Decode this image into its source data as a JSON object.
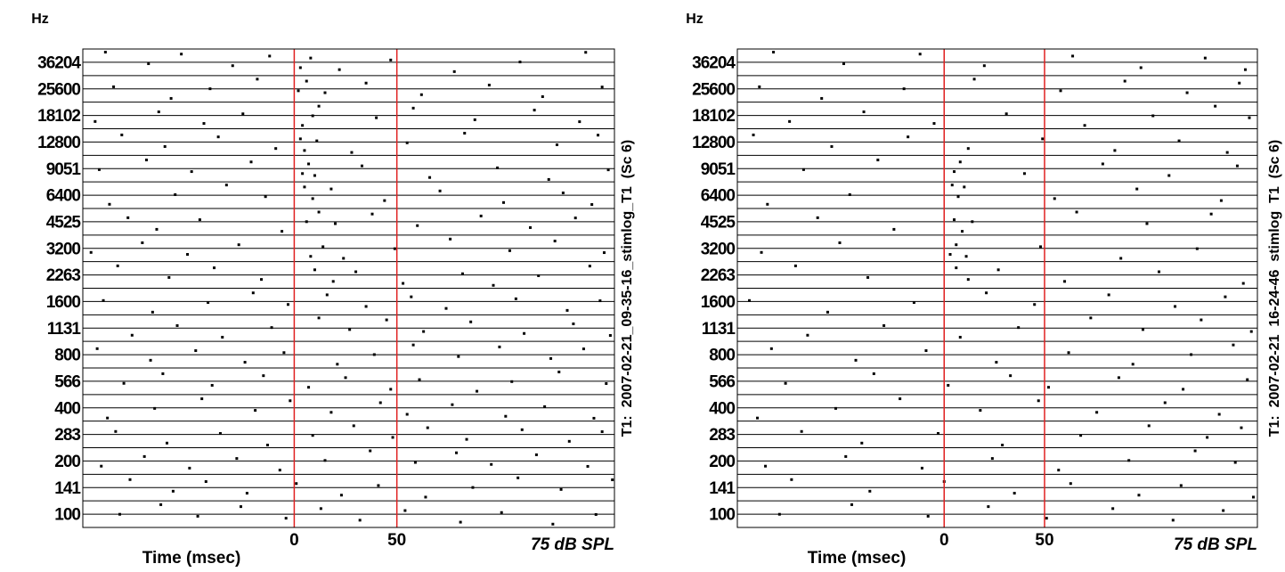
{
  "chart_data": [
    {
      "type": "raster",
      "y_unit": "Hz",
      "x_label": "Time (msec)",
      "annotation": "75 dB SPL",
      "side_label": "T1:  2007-02-21_09-35-16_stimlog_T1  (Sc 6)",
      "categories": [
        "36204",
        "25600",
        "18102",
        "12800",
        "9051",
        "6400",
        "4525",
        "3200",
        "2263",
        "1600",
        "1131",
        "800",
        "566",
        "400",
        "283",
        "200",
        "141",
        "100"
      ],
      "xlim": [
        -103,
        156
      ],
      "xticks": [
        0,
        50
      ],
      "marker_color": "#e02020",
      "spike_color": "#000000",
      "spikes": [
        [
          -92,
          -71,
          -55,
          -30,
          -12,
          3,
          8,
          22,
          47,
          78,
          110,
          142
        ],
        [
          -88,
          -60,
          -41,
          -18,
          2,
          6,
          15,
          35,
          62,
          95,
          121,
          150
        ],
        [
          -97,
          -66,
          -44,
          -25,
          4,
          9,
          12,
          40,
          58,
          88,
          117,
          139
        ],
        [
          -84,
          -63,
          -37,
          -9,
          3,
          5,
          11,
          28,
          55,
          83,
          128,
          148
        ],
        [
          -95,
          -72,
          -50,
          -21,
          4,
          7,
          10,
          33,
          66,
          99,
          124,
          153
        ],
        [
          -90,
          -58,
          -33,
          -14,
          5,
          9,
          18,
          44,
          71,
          102,
          131,
          145
        ],
        [
          -81,
          -67,
          -46,
          -6,
          6,
          12,
          20,
          38,
          60,
          91,
          115,
          137
        ],
        [
          -99,
          -74,
          -52,
          -27,
          8,
          14,
          24,
          49,
          76,
          105,
          127,
          151
        ],
        [
          -86,
          -61,
          -39,
          -16,
          10,
          19,
          30,
          53,
          82,
          97,
          119,
          144
        ],
        [
          -93,
          -69,
          -42,
          -20,
          -3,
          16,
          35,
          57,
          74,
          108,
          133,
          149
        ],
        [
          -79,
          -57,
          -35,
          -11,
          12,
          27,
          45,
          63,
          86,
          112,
          136,
          154
        ],
        [
          -96,
          -70,
          -48,
          -24,
          -5,
          21,
          39,
          58,
          80,
          100,
          125,
          141
        ],
        [
          -83,
          -64,
          -40,
          -15,
          7,
          25,
          47,
          61,
          89,
          106,
          129,
          152
        ],
        [
          -91,
          -68,
          -45,
          -19,
          -2,
          18,
          42,
          55,
          77,
          103,
          122,
          146
        ],
        [
          -87,
          -62,
          -36,
          -13,
          9,
          29,
          48,
          65,
          84,
          111,
          134,
          150
        ],
        [
          -94,
          -73,
          -51,
          -28,
          -7,
          15,
          37,
          59,
          79,
          96,
          118,
          143
        ],
        [
          -80,
          -59,
          -43,
          -23,
          1,
          23,
          41,
          64,
          87,
          109,
          130,
          155
        ],
        [
          -85,
          -65,
          -47,
          -26,
          -4,
          13,
          32,
          54,
          81,
          101,
          126,
          147
        ]
      ]
    },
    {
      "type": "raster",
      "y_unit": "Hz",
      "x_label": "Time (msec)",
      "annotation": "75 dB SPL",
      "side_label": "T1:  2007-02-21  16-24-46  stimlog  T1  (Sc 6)",
      "categories": [
        "36204",
        "25600",
        "18102",
        "12800",
        "9051",
        "6400",
        "4525",
        "3200",
        "2263",
        "1600",
        "1131",
        "800",
        "566",
        "400",
        "283",
        "200",
        "141",
        "100"
      ],
      "xlim": [
        -103,
        156
      ],
      "xticks": [
        0,
        50
      ],
      "marker_color": "#e02020",
      "spike_color": "#000000",
      "spikes": [
        [
          -85,
          -50,
          -12,
          20,
          64,
          98,
          130,
          150
        ],
        [
          -92,
          -61,
          -20,
          15,
          58,
          90,
          121,
          147
        ],
        [
          -77,
          -40,
          -5,
          31,
          70,
          104,
          135,
          152
        ],
        [
          -95,
          -56,
          -18,
          12,
          49,
          85,
          117,
          141
        ],
        [
          -70,
          -33,
          5,
          8,
          40,
          79,
          112,
          146
        ],
        [
          -88,
          -47,
          4,
          7,
          10,
          55,
          96,
          138
        ],
        [
          -63,
          -25,
          5,
          9,
          14,
          66,
          101,
          133
        ],
        [
          -91,
          -52,
          3,
          6,
          11,
          48,
          88,
          126
        ],
        [
          -74,
          -38,
          6,
          12,
          27,
          60,
          107,
          149
        ],
        [
          -97,
          -58,
          -15,
          21,
          45,
          82,
          115,
          140
        ],
        [
          -68,
          -30,
          8,
          37,
          73,
          99,
          128,
          153
        ],
        [
          -86,
          -44,
          -9,
          26,
          62,
          94,
          123,
          144
        ],
        [
          -79,
          -35,
          2,
          33,
          52,
          87,
          119,
          151
        ],
        [
          -93,
          -54,
          -22,
          18,
          47,
          76,
          110,
          137
        ],
        [
          -71,
          -41,
          -3,
          29,
          68,
          102,
          131,
          148
        ],
        [
          -89,
          -49,
          -11,
          24,
          57,
          92,
          125,
          145
        ],
        [
          -76,
          -37,
          0,
          35,
          63,
          97,
          118,
          154
        ],
        [
          -82,
          -46,
          -8,
          22,
          51,
          84,
          114,
          139
        ]
      ]
    }
  ]
}
